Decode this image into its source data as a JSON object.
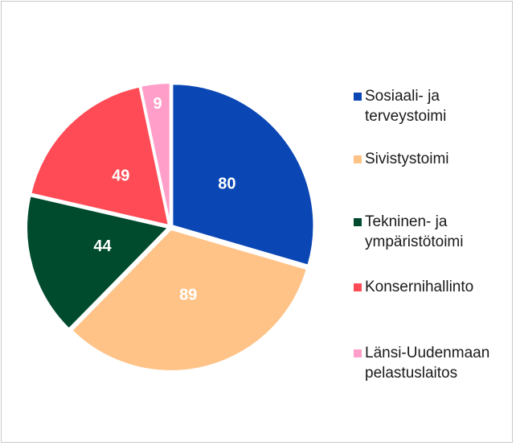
{
  "chart_data": {
    "type": "pie",
    "categories": [
      "Sosiaali- ja terveystoimi",
      "Sivistystoimi",
      "Tekninen- ja ympäristötoimi",
      "Konsernihallinto",
      "Länsi-Uudenmaan pelastuslaitos"
    ],
    "values": [
      80,
      89,
      44,
      49,
      9
    ],
    "colors": [
      "#0a46b4",
      "#ffc387",
      "#004b2d",
      "#ff4b55",
      "#ff9ec8"
    ],
    "legend": "right"
  }
}
